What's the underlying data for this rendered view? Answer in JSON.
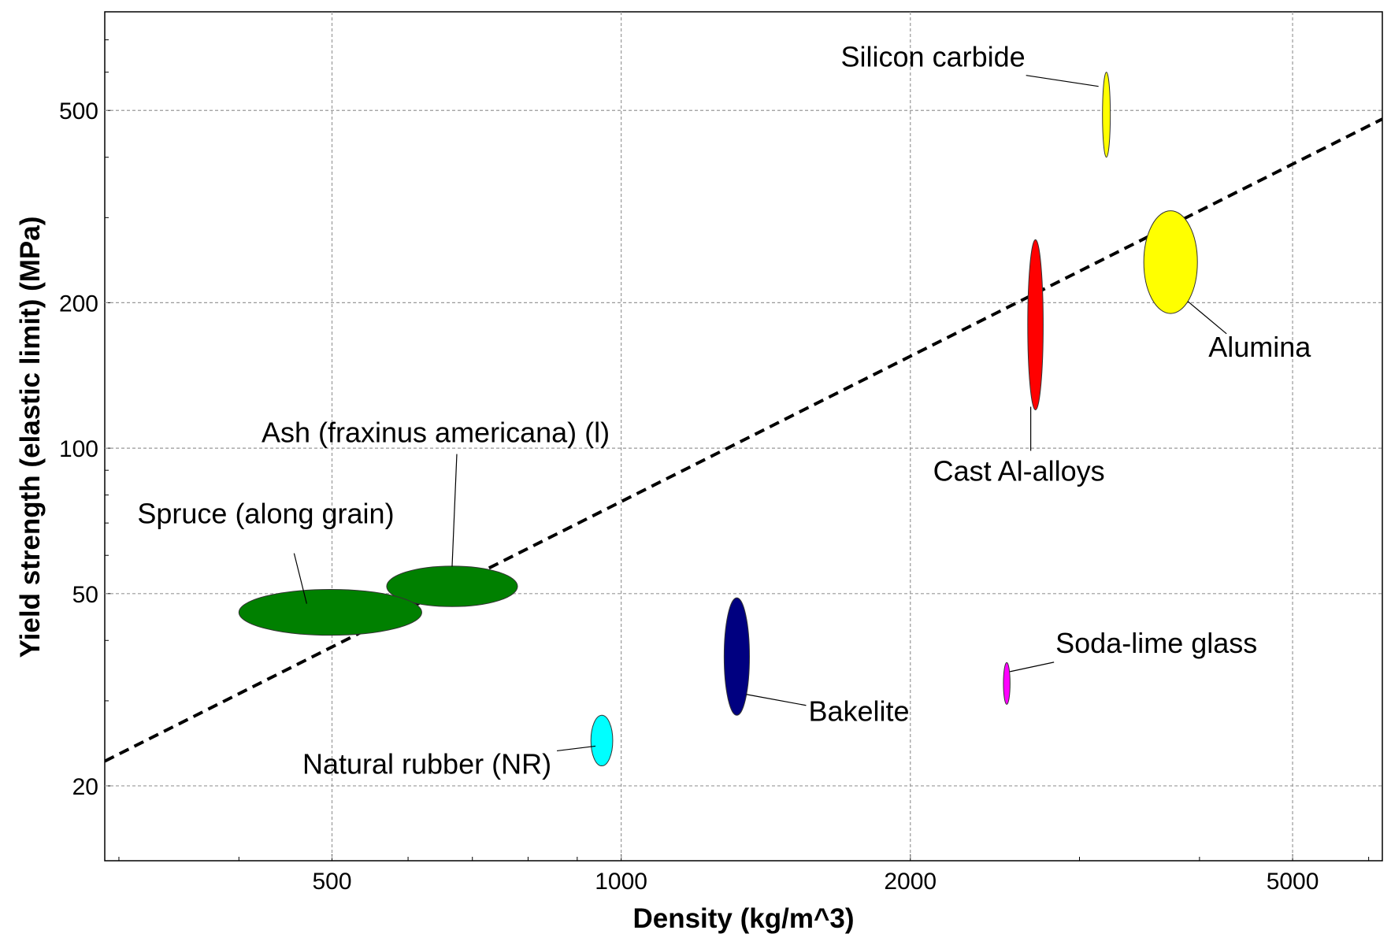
{
  "chart_data": {
    "type": "scatter",
    "title": "",
    "xlabel": "Density (kg/m^3)",
    "ylabel": "Yield strength (elastic limit) (MPa)",
    "x_scale": "log",
    "y_scale": "log",
    "xlim": [
      290,
      6200
    ],
    "ylim": [
      14,
      800
    ],
    "x_ticks": [
      {
        "value": 500,
        "label": "500"
      },
      {
        "value": 1000,
        "label": "1000"
      },
      {
        "value": 2000,
        "label": "2000"
      },
      {
        "value": 5000,
        "label": "5000"
      }
    ],
    "y_ticks": [
      {
        "value": 20,
        "label": "20"
      },
      {
        "value": 50,
        "label": "50"
      },
      {
        "value": 100,
        "label": "100"
      },
      {
        "value": 200,
        "label": "200"
      },
      {
        "value": 500,
        "label": "500"
      }
    ],
    "grid": true,
    "guideline": {
      "style": "dashed",
      "color": "#000000",
      "x": [
        290,
        6200
      ],
      "y": [
        22.5,
        480
      ]
    },
    "materials": [
      {
        "name": "Silicon carbide",
        "color": "#ffff00",
        "x_range": [
          3170,
          3230
        ],
        "y_range": [
          400,
          600
        ]
      },
      {
        "name": "Alumina",
        "color": "#ffff00",
        "x_range": [
          3500,
          3980
        ],
        "y_range": [
          190,
          310
        ]
      },
      {
        "name": "Cast Al-alloys",
        "color": "#ff0000",
        "x_range": [
          2650,
          2750
        ],
        "y_range": [
          120,
          270
        ]
      },
      {
        "name": "Ash (fraxinus americana) (l)",
        "color": "#008000",
        "x_range": [
          570,
          780
        ],
        "y_range": [
          47,
          57
        ]
      },
      {
        "name": "Spruce (along grain)",
        "color": "#008000",
        "x_range": [
          400,
          620
        ],
        "y_range": [
          41,
          51
        ]
      },
      {
        "name": "Bakelite",
        "color": "#000080",
        "x_range": [
          1280,
          1360
        ],
        "y_range": [
          28,
          49
        ]
      },
      {
        "name": "Soda-lime glass",
        "color": "#ff00ff",
        "x_range": [
          2500,
          2540
        ],
        "y_range": [
          29.5,
          36
        ]
      },
      {
        "name": "Natural rubber (NR)",
        "color": "#00ffff",
        "x_range": [
          930,
          980
        ],
        "y_range": [
          22,
          28
        ]
      }
    ]
  }
}
